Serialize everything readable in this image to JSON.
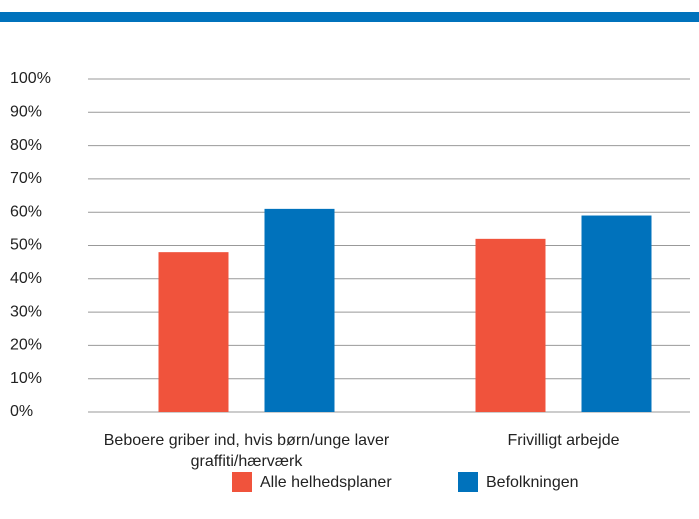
{
  "chart_data": {
    "type": "bar",
    "categories": [
      "Beboere griber ind, hvis børn/unge laver graffiti/hærværk",
      "Frivilligt arbejde"
    ],
    "series": [
      {
        "name": "Alle helhedsplaner",
        "color": "#f0533c",
        "values": [
          48,
          52
        ]
      },
      {
        "name": "Befolkningen",
        "color": "#0072bc",
        "values": [
          61,
          59
        ]
      }
    ],
    "ylim": [
      0,
      100
    ],
    "yticks": [
      {
        "value": 0,
        "label": "0%"
      },
      {
        "value": 10,
        "label": "10%"
      },
      {
        "value": 20,
        "label": "20%"
      },
      {
        "value": 30,
        "label": "30%"
      },
      {
        "value": 40,
        "label": "40%"
      },
      {
        "value": 50,
        "label": "50%"
      },
      {
        "value": 60,
        "label": "60%"
      },
      {
        "value": 70,
        "label": "70%"
      },
      {
        "value": 80,
        "label": "80%"
      },
      {
        "value": 90,
        "label": "90%"
      },
      {
        "value": 100,
        "label": "100%"
      }
    ],
    "grid": true,
    "legend": "bottom"
  }
}
